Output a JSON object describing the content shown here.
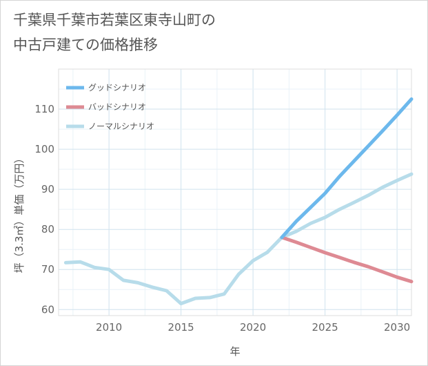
{
  "title_lines": [
    "千葉県千葉市若葉区東寺山町の",
    "中古戸建ての価格推移"
  ],
  "chart_data": {
    "type": "line",
    "title": "千葉県千葉市若葉区東寺山町の中古戸建ての価格推移",
    "xlabel": "年",
    "ylabel": "坪（3.3㎡）単価（万円）",
    "xlim": [
      2006.5,
      2031
    ],
    "ylim": [
      58.5,
      120
    ],
    "xticks": [
      2010,
      2015,
      2020,
      2025,
      2030
    ],
    "yticks": [
      60,
      70,
      80,
      90,
      100,
      110
    ],
    "grid": true,
    "legend_position": "top-left",
    "series": [
      {
        "name": "グッドシナリオ",
        "color": "#6cb8ec",
        "x": [
          2022,
          2023,
          2024,
          2025,
          2026,
          2027,
          2028,
          2029,
          2030,
          2031
        ],
        "y": [
          78.0,
          82.0,
          85.5,
          89.0,
          93.2,
          97.0,
          100.8,
          104.6,
          108.5,
          112.5
        ]
      },
      {
        "name": "バッドシナリオ",
        "color": "#de8a93",
        "x": [
          2022,
          2023,
          2024,
          2025,
          2026,
          2027,
          2028,
          2029,
          2030,
          2031
        ],
        "y": [
          78.0,
          76.8,
          75.5,
          74.2,
          73.0,
          71.8,
          70.7,
          69.4,
          68.1,
          67.0
        ]
      },
      {
        "name": "ノーマルシナリオ",
        "color": "#b7dcea",
        "x": [
          2007,
          2008,
          2009,
          2010,
          2011,
          2012,
          2013,
          2014,
          2015,
          2016,
          2017,
          2018,
          2019,
          2020,
          2021,
          2022,
          2023,
          2024,
          2025,
          2026,
          2027,
          2028,
          2029,
          2030,
          2031
        ],
        "y": [
          71.7,
          71.9,
          70.5,
          70.0,
          67.3,
          66.7,
          65.6,
          64.7,
          61.5,
          62.8,
          63.0,
          63.9,
          68.8,
          72.2,
          74.3,
          78.0,
          79.5,
          81.5,
          83.0,
          85.0,
          86.7,
          88.5,
          90.5,
          92.2,
          93.8
        ]
      }
    ]
  }
}
